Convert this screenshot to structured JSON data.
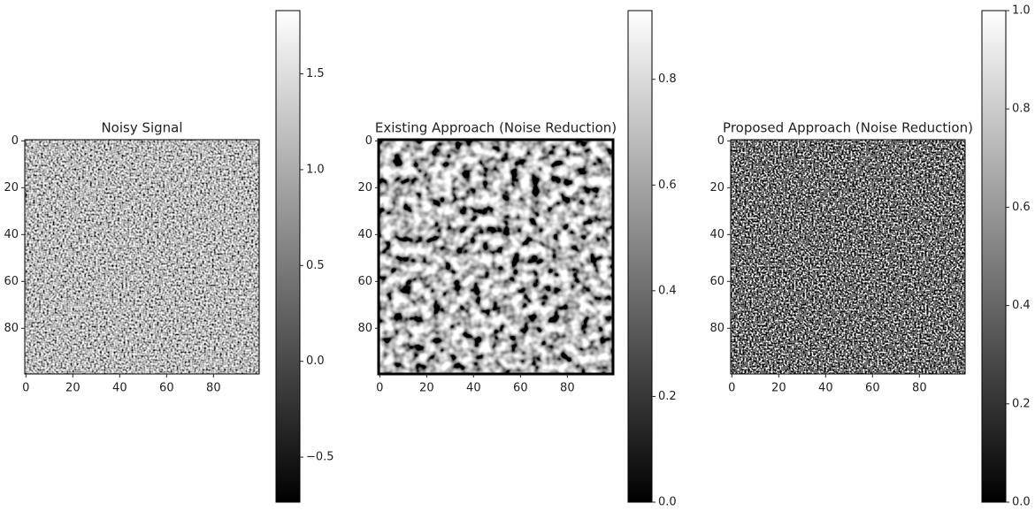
{
  "chart_data": [
    {
      "type": "image",
      "title": "Noisy Signal",
      "cmap": "gray",
      "xlim": [
        -0.5,
        99.5
      ],
      "ylim": [
        99.5,
        -0.5
      ],
      "xticks": [
        0,
        20,
        40,
        60,
        80
      ],
      "yticks": [
        0,
        20,
        40,
        60,
        80
      ],
      "colorbar": {
        "lim": [
          -0.735,
          1.83
        ],
        "ticks": [
          {
            "value": -0.5,
            "label": "−0.5"
          },
          {
            "value": 0,
            "label": "0.0"
          },
          0.5,
          {
            "value": 1,
            "label": "1.0"
          },
          1.5
        ]
      }
    },
    {
      "type": "image",
      "title": "Existing Approach (Noise Reduction)",
      "cmap": "gray",
      "xlim": [
        -0.5,
        99.5
      ],
      "ylim": [
        99.5,
        -0.5
      ],
      "xticks": [
        0,
        20,
        40,
        60,
        80
      ],
      "yticks": [
        0,
        20,
        40,
        60,
        80
      ],
      "colorbar": {
        "lim": [
          0,
          0.93
        ],
        "ticks": [
          {
            "value": 0,
            "label": "0.0"
          },
          0.2,
          0.4,
          0.6,
          0.8
        ]
      }
    },
    {
      "type": "image",
      "title": "Proposed Approach (Noise Reduction)",
      "cmap": "gray",
      "xlim": [
        -0.5,
        99.5
      ],
      "ylim": [
        99.5,
        -0.5
      ],
      "xticks": [
        0,
        20,
        40,
        60,
        80
      ],
      "yticks": [
        0,
        20,
        40,
        60,
        80
      ],
      "colorbar": {
        "lim": [
          0,
          1
        ],
        "ticks": [
          {
            "value": 0,
            "label": "0.0"
          },
          0.2,
          0.4,
          0.6,
          0.8,
          {
            "value": 1,
            "label": "1.0"
          }
        ]
      }
    }
  ]
}
